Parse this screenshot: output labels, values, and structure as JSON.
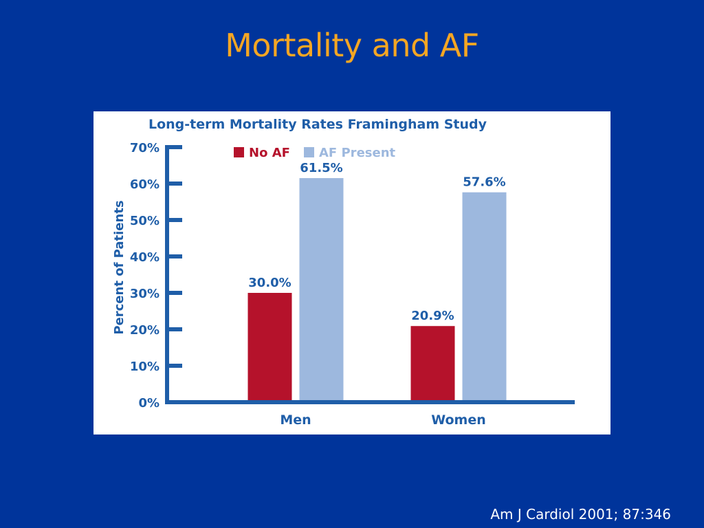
{
  "slide": {
    "title": "Mortality and AF",
    "citation": "Am J Cardiol 2001; 87:346"
  },
  "colors": {
    "background": "#00349b",
    "title": "#f5a623",
    "axis": "#1f5ea8",
    "no_af": "#b5122b",
    "af_present": "#9db8de"
  },
  "chart_data": {
    "type": "bar",
    "title": "Long-term Mortality Rates Framingham Study",
    "xlabel": "",
    "ylabel": "Percent of Patients",
    "ylim": [
      0,
      70
    ],
    "yticks": [
      "0%",
      "10%",
      "20%",
      "30%",
      "40%",
      "50%",
      "60%",
      "70%"
    ],
    "categories": [
      "Men",
      "Women"
    ],
    "legend_position": "top-left",
    "grid": false,
    "series": [
      {
        "name": "No AF",
        "color": "#b5122b",
        "values": [
          30.0,
          20.9
        ],
        "labels": [
          "30.0%",
          "20.9%"
        ]
      },
      {
        "name": "AF Present",
        "color": "#9db8de",
        "values": [
          61.5,
          57.6
        ],
        "labels": [
          "61.5%",
          "57.6%"
        ]
      }
    ]
  }
}
